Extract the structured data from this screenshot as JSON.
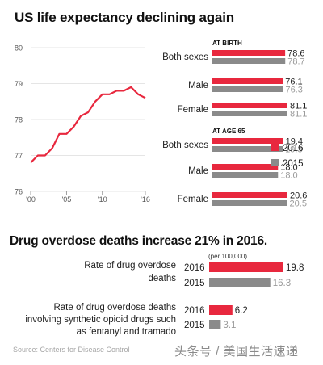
{
  "titles": {
    "top": "US life expectancy declining again",
    "bottom": "Drug overdose deaths increase 21% in 2016."
  },
  "source": "Source: Centers for Disease Control",
  "watermark": "头条号 / 美国生活速递",
  "colors": {
    "red": "#e8283e",
    "gray": "#8a8a8a",
    "line": "#e8283e",
    "grid": "#dcdcdc",
    "valueGray": "#9a9a9a"
  },
  "chart_data": [
    {
      "type": "line",
      "x": [
        2000,
        2001,
        2002,
        2003,
        2004,
        2005,
        2006,
        2007,
        2008,
        2009,
        2010,
        2011,
        2012,
        2013,
        2014,
        2015,
        2016
      ],
      "values": [
        76.8,
        77.0,
        77.0,
        77.2,
        77.6,
        77.6,
        77.8,
        78.1,
        78.2,
        78.5,
        78.7,
        78.7,
        78.8,
        78.8,
        78.9,
        78.7,
        78.6
      ],
      "ylim": [
        76,
        80
      ],
      "y_ticks": [
        "76",
        "77",
        "78",
        "79",
        "80"
      ],
      "x_tick_values": [
        2000,
        2005,
        2010,
        2016
      ],
      "x_ticks": [
        "'00",
        "'05",
        "'10",
        "'16"
      ],
      "grid": true
    },
    {
      "type": "bar",
      "legend_position": "right",
      "legend": [
        {
          "name": "2016",
          "color": "red"
        },
        {
          "name": "2015",
          "color": "gray"
        }
      ],
      "groups": [
        {
          "title": "AT BIRTH",
          "rows": [
            {
              "label": "Both sexes",
              "v2016": 78.6,
              "v2015": 78.7
            },
            {
              "label": "Male",
              "v2016": 76.1,
              "v2015": 76.3
            },
            {
              "label": "Female",
              "v2016": 81.1,
              "v2015": 81.1
            }
          ]
        },
        {
          "title": "AT AGE 65",
          "rows": [
            {
              "label": "Both sexes",
              "v2016": 19.4,
              "v2015": 19.3
            },
            {
              "label": "Male",
              "v2016": 18.0,
              "v2015": 18.0
            },
            {
              "label": "Female",
              "v2016": 20.6,
              "v2015": 20.5
            }
          ]
        }
      ],
      "value_labels": {
        "78.6": "78.6",
        "78.7": "78.7",
        "76.1": "76.1",
        "76.3": "76.3",
        "81.1": "81.1",
        "19.4": "19.4",
        "19.3": "19.3",
        "18.0": "18.0",
        "20.6": "20.6",
        "20.5": "20.5"
      }
    },
    {
      "type": "bar",
      "unit_note": "(per 100,000)",
      "rows": [
        {
          "label_lines": [
            "Rate of drug overdose",
            "deaths"
          ],
          "values": [
            {
              "year": "2016",
              "value": 19.8,
              "label": "19.8"
            },
            {
              "year": "2015",
              "value": 16.3,
              "label": "16.3"
            }
          ]
        },
        {
          "label_lines": [
            "Rate of drug overdose deaths",
            "involving synthetic opioid drugs such",
            "as fentanyl and tramado"
          ],
          "values": [
            {
              "year": "2016",
              "value": 6.2,
              "label": "6.2"
            },
            {
              "year": "2015",
              "value": 3.1,
              "label": "3.1"
            }
          ]
        }
      ]
    }
  ]
}
